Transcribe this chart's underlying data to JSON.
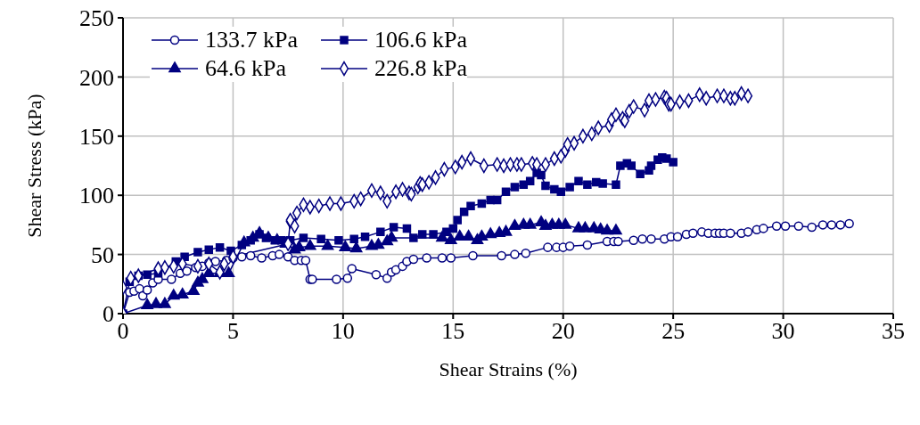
{
  "chart_data": {
    "type": "line",
    "xlabel": "Shear Strains (%)",
    "ylabel": "Shear Stress (kPa)",
    "xlim": [
      0,
      35
    ],
    "xticks": [
      0,
      5,
      10,
      15,
      20,
      25,
      30,
      35
    ],
    "ylim": [
      0,
      250
    ],
    "yticks": [
      0,
      50,
      100,
      150,
      200,
      250
    ],
    "grid": true,
    "legend": "top left",
    "line_style": "solid",
    "series": [
      {
        "name": "133.7 kPa",
        "color": "#000080",
        "marker": "circle",
        "x": [
          0,
          0.3,
          0.5,
          0.75,
          0.9,
          1.1,
          1.35,
          1.6,
          2.2,
          2.6,
          2.9,
          3.3,
          3.6,
          3.9,
          4.2,
          4.7,
          5.0,
          5.4,
          5.8,
          6.3,
          6.8,
          7.1,
          7.5,
          7.8,
          8.1,
          8.3,
          8.5,
          8.6,
          9.7,
          10.2,
          10.4,
          11.5,
          12.0,
          12.2,
          12.4,
          12.7,
          12.9,
          13.2,
          13.8,
          14.5,
          14.9,
          15.9,
          17.2,
          17.8,
          18.3,
          19.3,
          19.7,
          20.0,
          20.3,
          21.1,
          22.0,
          22.3,
          22.5,
          23.2,
          23.6,
          24.0,
          24.6,
          24.9,
          25.2,
          25.6,
          25.9,
          26.3,
          26.6,
          26.9,
          27.1,
          27.3,
          27.6,
          28.1,
          28.4,
          28.8,
          29.1,
          29.7,
          30.1,
          30.7,
          31.3,
          31.8,
          32.2,
          32.6,
          33.0
        ],
        "values": [
          0,
          18,
          19,
          21,
          15,
          20,
          26,
          29,
          29,
          34,
          36,
          39,
          40,
          43,
          44,
          45,
          47,
          48,
          49,
          47,
          49,
          50,
          48,
          45,
          45,
          45,
          29,
          29,
          29,
          30,
          38,
          33,
          30,
          35,
          37,
          40,
          44,
          46,
          47,
          47,
          47,
          49,
          49,
          50,
          51,
          56,
          56,
          56,
          57,
          58,
          61,
          61,
          61,
          62,
          63,
          63,
          63,
          65,
          65,
          67,
          68,
          69,
          68,
          68,
          68,
          68,
          68,
          68,
          69,
          71,
          72,
          74,
          74,
          74,
          73,
          75,
          75,
          75,
          76
        ]
      },
      {
        "name": "106.6 kPa",
        "color": "#000080",
        "marker": "square",
        "x": [
          0,
          0.3,
          0.7,
          1.1,
          1.6,
          2.4,
          2.8,
          3.4,
          3.9,
          4.4,
          4.9,
          5.4,
          5.8,
          6.2,
          6.5,
          6.9,
          7.2,
          7.6,
          8.2,
          9.0,
          9.8,
          10.5,
          11.0,
          11.7,
          12.3,
          12.9,
          13.2,
          13.6,
          14.1,
          14.7,
          15.0,
          15.2,
          15.5,
          15.8,
          16.3,
          16.7,
          17.0,
          17.4,
          17.8,
          18.2,
          18.5,
          18.8,
          19.0,
          19.2,
          19.6,
          19.9,
          20.3,
          20.7,
          21.1,
          21.5,
          21.8,
          22.4,
          22.6,
          22.9,
          23.1,
          23.5,
          23.9,
          24.0,
          24.3,
          24.5,
          24.7,
          25.0
        ],
        "values": [
          0,
          27,
          32,
          33,
          34,
          44,
          48,
          52,
          54,
          56,
          53,
          58,
          62,
          67,
          64,
          62,
          62,
          62,
          64,
          63,
          62,
          63,
          65,
          69,
          73,
          72,
          64,
          67,
          67,
          69,
          72,
          79,
          86,
          91,
          93,
          96,
          96,
          103,
          107,
          109,
          112,
          119,
          117,
          108,
          105,
          103,
          107,
          112,
          109,
          111,
          110,
          109,
          125,
          127,
          125,
          118,
          121,
          125,
          130,
          132,
          131,
          128
        ]
      },
      {
        "name": "64.6 kPa",
        "color": "#000080",
        "marker": "triangle",
        "x": [
          0,
          1.1,
          1.5,
          1.9,
          2.3,
          2.7,
          3.2,
          3.4,
          3.6,
          3.9,
          4.4,
          4.8,
          5.5,
          5.9,
          6.2,
          6.6,
          7.0,
          7.4,
          7.8,
          8.0,
          8.5,
          9.3,
          10.1,
          10.6,
          11.3,
          11.6,
          12.0,
          12.2,
          14.5,
          14.9,
          15.3,
          15.7,
          16.1,
          16.3,
          16.7,
          17.1,
          17.4,
          17.8,
          18.2,
          18.5,
          19.0,
          19.2,
          19.5,
          19.8,
          20.1,
          20.7,
          21.0,
          21.4,
          21.7,
          22.0,
          22.4
        ],
        "values": [
          0,
          7,
          8,
          8,
          15,
          16,
          19,
          26,
          29,
          34,
          34,
          34,
          60,
          64,
          68,
          64,
          62,
          59,
          54,
          56,
          57,
          57,
          56,
          55,
          57,
          58,
          61,
          64,
          64,
          62,
          65,
          65,
          62,
          65,
          67,
          68,
          69,
          74,
          75,
          75,
          77,
          74,
          75,
          75,
          75,
          72,
          72,
          72,
          71,
          70,
          70
        ]
      },
      {
        "name": "226.8 kPa",
        "color": "#000080",
        "marker": "diamond",
        "x": [
          0,
          0,
          0.35,
          0.7,
          1.6,
          1.9,
          2.3,
          2.7,
          3.4,
          3.9,
          4.4,
          4.6,
          5.0,
          7.5,
          7.6,
          7.6,
          7.8,
          7.9,
          8.2,
          8.5,
          8.9,
          9.4,
          9.9,
          10.5,
          10.8,
          11.3,
          11.7,
          12.0,
          12.4,
          12.7,
          13.0,
          13.1,
          13.4,
          13.5,
          13.6,
          13.9,
          14.2,
          14.6,
          15.1,
          15.4,
          15.8,
          16.4,
          17.0,
          17.3,
          17.6,
          17.9,
          18.1,
          18.6,
          18.8,
          19.2,
          19.6,
          19.9,
          20.1,
          20.2,
          20.5,
          20.9,
          21.3,
          21.6,
          22.1,
          22.2,
          22.4,
          22.7,
          22.8,
          23.0,
          23.2,
          23.7,
          23.9,
          24.2,
          24.6,
          24.7,
          24.8,
          24.9,
          25.3,
          25.7,
          26.2,
          26.5,
          27.0,
          27.3,
          27.6,
          27.8,
          28.1,
          28.4
        ],
        "values": [
          0,
          22,
          30,
          32,
          38,
          39,
          40,
          42,
          40,
          42,
          35,
          42,
          48,
          59,
          78,
          79,
          74,
          85,
          92,
          90,
          91,
          93,
          93,
          95,
          97,
          104,
          102,
          95,
          103,
          105,
          102,
          101,
          107,
          110,
          109,
          111,
          115,
          122,
          124,
          128,
          131,
          125,
          126,
          125,
          126,
          126,
          126,
          127,
          126,
          126,
          131,
          133,
          138,
          143,
          144,
          150,
          152,
          157,
          159,
          164,
          168,
          165,
          163,
          171,
          175,
          172,
          180,
          181,
          183,
          182,
          177,
          177,
          179,
          180,
          185,
          182,
          184,
          184,
          182,
          182,
          186,
          184
        ]
      }
    ]
  }
}
